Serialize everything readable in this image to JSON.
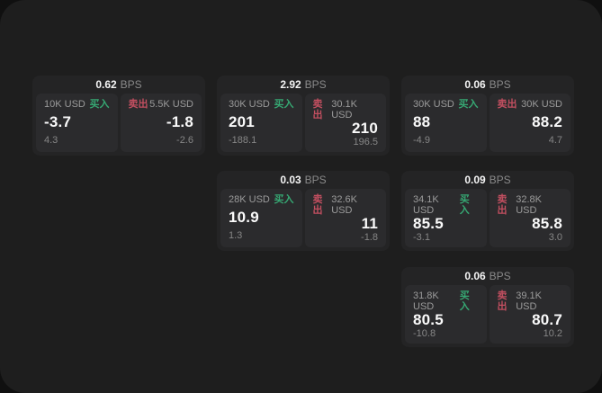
{
  "labels": {
    "bps_unit": "BPS",
    "buy": "买入",
    "sell": "卖出"
  },
  "colors": {
    "buy": "#36a873",
    "sell": "#c24f60"
  },
  "cards": [
    {
      "bps": "0.62",
      "buy": {
        "notional": "10K USD",
        "price": "-3.7",
        "delta": "4.3"
      },
      "sell": {
        "notional": "5.5K USD",
        "price": "-1.8",
        "delta": "-2.6"
      }
    },
    {
      "bps": "2.92",
      "buy": {
        "notional": "30K USD",
        "price": "201",
        "delta": "-188.1"
      },
      "sell": {
        "notional": "30.1K USD",
        "price": "210",
        "delta": "196.5"
      }
    },
    {
      "bps": "0.06",
      "buy": {
        "notional": "30K USD",
        "price": "88",
        "delta": "-4.9"
      },
      "sell": {
        "notional": "30K USD",
        "price": "88.2",
        "delta": "4.7"
      }
    },
    {
      "bps": "0.03",
      "buy": {
        "notional": "28K USD",
        "price": "10.9",
        "delta": "1.3"
      },
      "sell": {
        "notional": "32.6K USD",
        "price": "11",
        "delta": "-1.8"
      }
    },
    {
      "bps": "0.09",
      "buy": {
        "notional": "34.1K USD",
        "price": "85.5",
        "delta": "-3.1"
      },
      "sell": {
        "notional": "32.8K USD",
        "price": "85.8",
        "delta": "3.0"
      }
    },
    {
      "bps": "0.06",
      "buy": {
        "notional": "31.8K USD",
        "price": "80.5",
        "delta": "-10.8"
      },
      "sell": {
        "notional": "39.1K USD",
        "price": "80.7",
        "delta": "10.2"
      }
    }
  ]
}
